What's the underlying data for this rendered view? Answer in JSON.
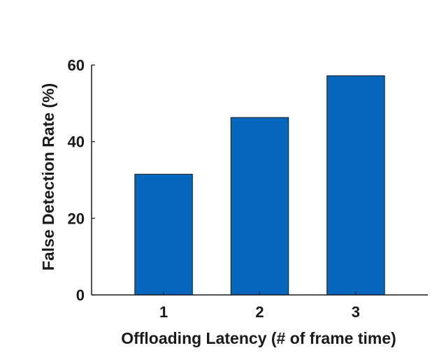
{
  "chart_data": {
    "type": "bar",
    "categories": [
      "1",
      "2",
      "3"
    ],
    "values": [
      31.5,
      46.3,
      57.2
    ],
    "xlabel": "Offloading Latency (# of frame time)",
    "ylabel": "False Detection Rate (%)",
    "ylim": [
      0,
      60
    ],
    "yticks": [
      "0",
      "20",
      "40",
      "60"
    ],
    "grid": false,
    "bar_color": "#0566be",
    "edge_color": "#1a1a1a"
  }
}
